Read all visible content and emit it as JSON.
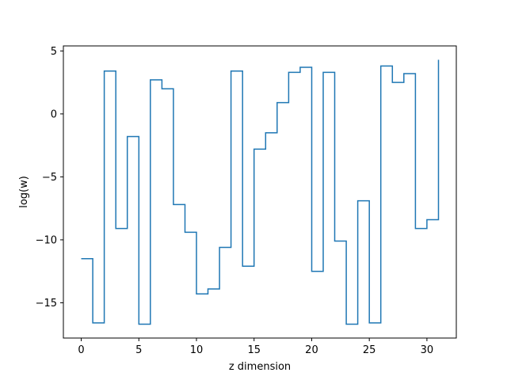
{
  "chart_data": {
    "type": "line",
    "step": "post",
    "title": "",
    "xlabel": "z dimension",
    "ylabel": "log(w)",
    "xlim": [
      -1.55,
      32.55
    ],
    "ylim": [
      -17.8,
      5.4
    ],
    "grid": false,
    "x_ticks": [
      0,
      5,
      10,
      15,
      20,
      25,
      30
    ],
    "y_ticks": [
      -15,
      -10,
      -5,
      0,
      5
    ],
    "x_tick_labels": [
      "0",
      "5",
      "10",
      "15",
      "20",
      "25",
      "30"
    ],
    "y_tick_labels": [
      "−15",
      "−10",
      "−5",
      "0",
      "5"
    ],
    "color": "#1f77b4",
    "series": [
      {
        "x": [
          0,
          1,
          2,
          3,
          4,
          5,
          6,
          7,
          8,
          9,
          10,
          11,
          12,
          13,
          14,
          15,
          16,
          17,
          18,
          19,
          20,
          21,
          22,
          23,
          24,
          25,
          26,
          27,
          28,
          29,
          30,
          31
        ],
        "values": [
          -11.5,
          -16.6,
          3.4,
          -9.1,
          -1.8,
          -16.7,
          2.7,
          2.0,
          -7.2,
          -9.4,
          -14.3,
          -13.9,
          -10.6,
          3.4,
          -12.1,
          -2.8,
          -1.5,
          0.9,
          3.3,
          3.7,
          -12.5,
          3.3,
          -10.1,
          -16.7,
          -6.9,
          -16.6,
          3.8,
          2.5,
          3.2,
          -9.1,
          -8.4,
          4.3
        ]
      }
    ]
  }
}
